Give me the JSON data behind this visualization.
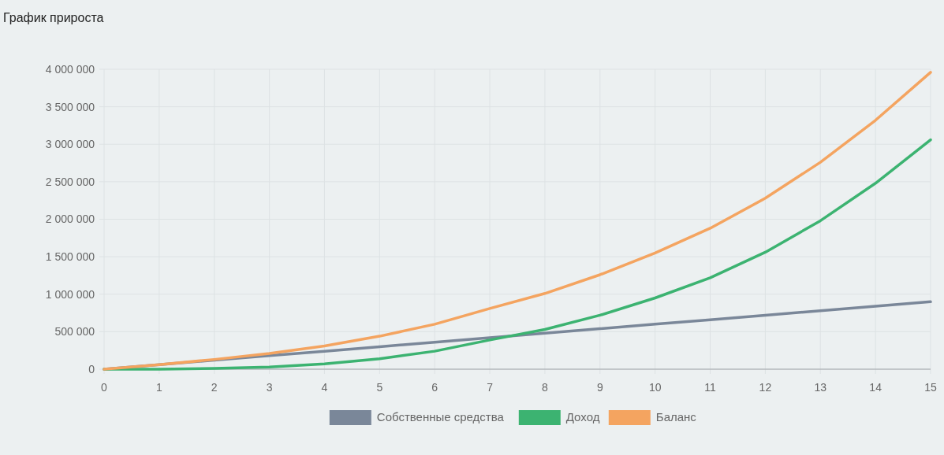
{
  "chart_data": {
    "type": "line",
    "title": "График прироста",
    "x": [
      0,
      1,
      2,
      3,
      4,
      5,
      6,
      7,
      8,
      9,
      10,
      11,
      12,
      13,
      14,
      15
    ],
    "xlim": [
      0,
      15
    ],
    "xticks": [
      0,
      1,
      2,
      3,
      4,
      5,
      6,
      7,
      8,
      9,
      10,
      11,
      12,
      13,
      14,
      15
    ],
    "ylim": [
      0,
      4000000
    ],
    "yticks": [
      {
        "value": 0,
        "label": "0"
      },
      {
        "value": 500000,
        "label": "500 000"
      },
      {
        "value": 1000000,
        "label": "1 000 000"
      },
      {
        "value": 1500000,
        "label": "1 500 000"
      },
      {
        "value": 2000000,
        "label": "2 000 000"
      },
      {
        "value": 2500000,
        "label": "2 500 000"
      },
      {
        "value": 3000000,
        "label": "3 000 000"
      },
      {
        "value": 3500000,
        "label": "3 500 000"
      },
      {
        "value": 4000000,
        "label": "4 000 000"
      }
    ],
    "grid": true,
    "legend": "bottom",
    "marker": "none",
    "line_style": "solid",
    "series": [
      {
        "name": "Собственные средства",
        "color": "#7a8799",
        "values": [
          0,
          60000,
          120000,
          180000,
          240000,
          300000,
          360000,
          420000,
          480000,
          540000,
          600000,
          660000,
          720000,
          780000,
          840000,
          900000
        ]
      },
      {
        "name": "Доход",
        "color": "#3cb371",
        "values": [
          0,
          0,
          10000,
          30000,
          70000,
          140000,
          240000,
          390000,
          530000,
          720000,
          950000,
          1220000,
          1560000,
          1980000,
          2480000,
          3060000
        ]
      },
      {
        "name": "Баланс",
        "color": "#f4a460",
        "values": [
          0,
          60000,
          130000,
          210000,
          310000,
          440000,
          600000,
          810000,
          1010000,
          1260000,
          1550000,
          1880000,
          2280000,
          2760000,
          3320000,
          3960000
        ]
      }
    ]
  }
}
